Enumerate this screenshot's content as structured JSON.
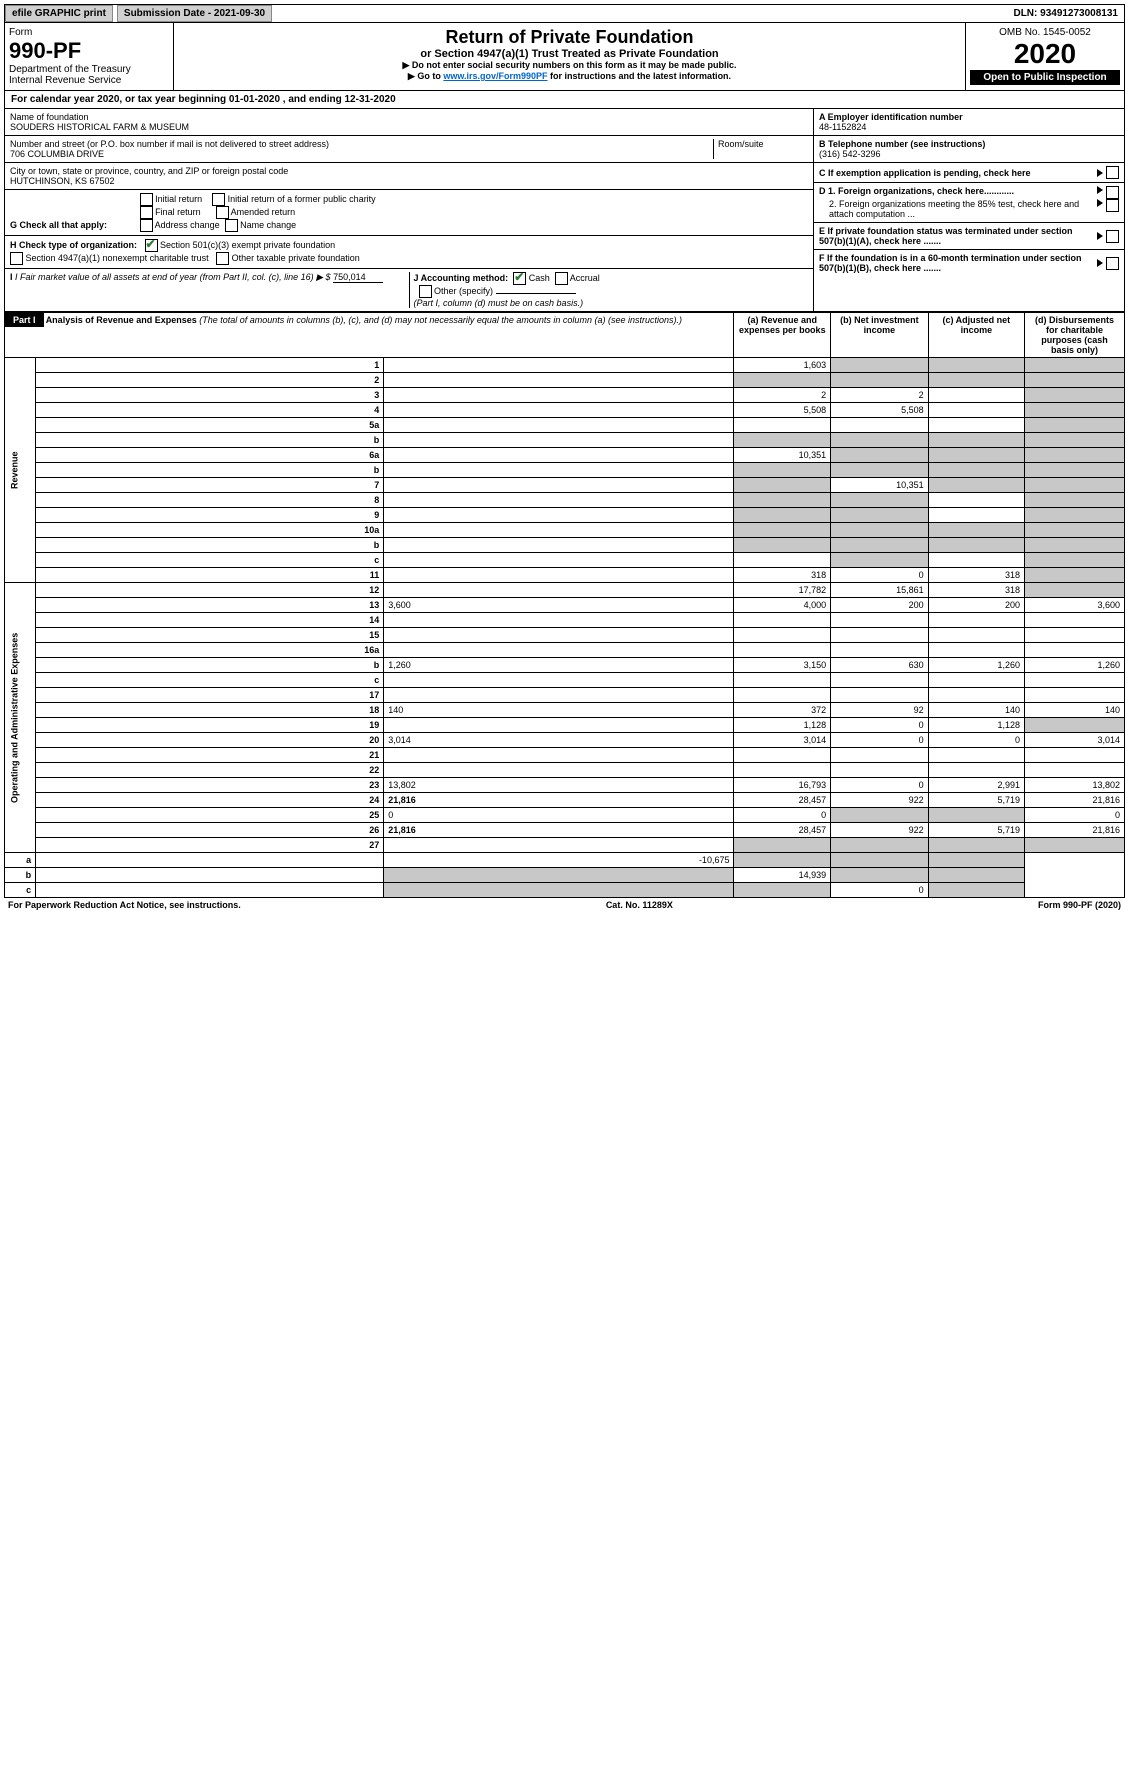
{
  "topbar": {
    "efile": "efile GRAPHIC print",
    "submission_label": "Submission Date - 2021-09-30",
    "dln": "DLN: 93491273008131"
  },
  "header": {
    "form_word": "Form",
    "form_number": "990-PF",
    "dept": "Department of the Treasury",
    "irs": "Internal Revenue Service",
    "title": "Return of Private Foundation",
    "subtitle": "or Section 4947(a)(1) Trust Treated as Private Foundation",
    "warn1": "▶ Do not enter social security numbers on this form as it may be made public.",
    "warn2_pre": "▶ Go to ",
    "warn2_link": "www.irs.gov/Form990PF",
    "warn2_post": " for instructions and the latest information.",
    "omb": "OMB No. 1545-0052",
    "year": "2020",
    "inspect": "Open to Public Inspection"
  },
  "calendar": {
    "text_pre": "For calendar year 2020, or tax year beginning ",
    "begin": "01-01-2020",
    "text_mid": " , and ending ",
    "end": "12-31-2020"
  },
  "info": {
    "name_label": "Name of foundation",
    "name": "SOUDERS HISTORICAL FARM & MUSEUM",
    "addr_label": "Number and street (or P.O. box number if mail is not delivered to street address)",
    "room_label": "Room/suite",
    "addr": "706 COLUMBIA DRIVE",
    "city_label": "City or town, state or province, country, and ZIP or foreign postal code",
    "city": "HUTCHINSON, KS  67502",
    "ein_label": "A Employer identification number",
    "ein": "48-1152824",
    "tel_label": "B Telephone number (see instructions)",
    "tel": "(316) 542-3296",
    "c_label": "C If exemption application is pending, check here",
    "g_label": "G Check all that apply:",
    "g_opts": [
      "Initial return",
      "Final return",
      "Address change",
      "Initial return of a former public charity",
      "Amended return",
      "Name change"
    ],
    "h_label": "H Check type of organization:",
    "h_opt1": "Section 501(c)(3) exempt private foundation",
    "h_opt2": "Section 4947(a)(1) nonexempt charitable trust",
    "h_opt3": "Other taxable private foundation",
    "i_label": "I Fair market value of all assets at end of year (from Part II, col. (c), line 16) ▶ $",
    "i_value": "750,014",
    "j_label": "J Accounting method:",
    "j_cash": "Cash",
    "j_accrual": "Accrual",
    "j_other": "Other (specify)",
    "j_note": "(Part I, column (d) must be on cash basis.)",
    "d1": "D 1. Foreign organizations, check here............",
    "d2": "2. Foreign organizations meeting the 85% test, check here and attach computation ...",
    "e_label": "E  If private foundation status was terminated under section 507(b)(1)(A), check here .......",
    "f_label": "F  If the foundation is in a 60-month termination under section 507(b)(1)(B), check here .......",
    "arrow": "▶"
  },
  "part1": {
    "label": "Part I",
    "title": "Analysis of Revenue and Expenses",
    "title_note": " (The total of amounts in columns (b), (c), and (d) may not necessarily equal the amounts in column (a) (see instructions).)",
    "col_a": "(a)   Revenue and expenses per books",
    "col_b": "(b)  Net investment income",
    "col_c": "(c)  Adjusted net income",
    "col_d": "(d)  Disbursements for charitable purposes (cash basis only)"
  },
  "revenue_label": "Revenue",
  "expenses_label": "Operating and Administrative Expenses",
  "rows": [
    {
      "n": "1",
      "d": "",
      "a": "1,603",
      "b": "",
      "c": "",
      "bg": [
        "",
        "g",
        "g",
        "g"
      ]
    },
    {
      "n": "2",
      "d": "",
      "a": "",
      "b": "",
      "c": "",
      "bg": [
        "g",
        "g",
        "g",
        "g"
      ],
      "checked": true
    },
    {
      "n": "3",
      "d": "",
      "a": "2",
      "b": "2",
      "c": "",
      "bg": [
        "",
        "",
        "",
        "g"
      ]
    },
    {
      "n": "4",
      "d": "",
      "a": "5,508",
      "b": "5,508",
      "c": "",
      "bg": [
        "",
        "",
        "",
        "g"
      ]
    },
    {
      "n": "5a",
      "d": "",
      "a": "",
      "b": "",
      "c": "",
      "bg": [
        "",
        "",
        "",
        "g"
      ]
    },
    {
      "n": "b",
      "d": "",
      "a": "",
      "b": "",
      "c": "",
      "bg": [
        "g",
        "g",
        "g",
        "g"
      ]
    },
    {
      "n": "6a",
      "d": "",
      "a": "10,351",
      "b": "",
      "c": "",
      "bg": [
        "",
        "g",
        "g",
        "g"
      ]
    },
    {
      "n": "b",
      "d": "",
      "a": "",
      "b": "",
      "c": "",
      "bg": [
        "g",
        "g",
        "g",
        "g"
      ]
    },
    {
      "n": "7",
      "d": "",
      "a": "",
      "b": "10,351",
      "c": "",
      "bg": [
        "g",
        "",
        "g",
        "g"
      ]
    },
    {
      "n": "8",
      "d": "",
      "a": "",
      "b": "",
      "c": "",
      "bg": [
        "g",
        "g",
        "",
        "g"
      ]
    },
    {
      "n": "9",
      "d": "",
      "a": "",
      "b": "",
      "c": "",
      "bg": [
        "g",
        "g",
        "",
        "g"
      ]
    },
    {
      "n": "10a",
      "d": "",
      "a": "",
      "b": "",
      "c": "",
      "bg": [
        "g",
        "g",
        "g",
        "g"
      ]
    },
    {
      "n": "b",
      "d": "",
      "a": "",
      "b": "",
      "c": "",
      "bg": [
        "g",
        "g",
        "g",
        "g"
      ]
    },
    {
      "n": "c",
      "d": "",
      "a": "",
      "b": "",
      "c": "",
      "bg": [
        "",
        "g",
        "",
        "g"
      ]
    },
    {
      "n": "11",
      "d": "",
      "a": "318",
      "b": "0",
      "c": "318",
      "bg": [
        "",
        "",
        "",
        "g"
      ]
    },
    {
      "n": "12",
      "d": "",
      "a": "17,782",
      "b": "15,861",
      "c": "318",
      "bg": [
        "",
        "",
        "",
        "g"
      ],
      "bold": true
    },
    {
      "n": "13",
      "d": "3,600",
      "a": "4,000",
      "b": "200",
      "c": "200"
    },
    {
      "n": "14",
      "d": "",
      "a": "",
      "b": "",
      "c": ""
    },
    {
      "n": "15",
      "d": "",
      "a": "",
      "b": "",
      "c": ""
    },
    {
      "n": "16a",
      "d": "",
      "a": "",
      "b": "",
      "c": ""
    },
    {
      "n": "b",
      "d": "1,260",
      "a": "3,150",
      "b": "630",
      "c": "1,260"
    },
    {
      "n": "c",
      "d": "",
      "a": "",
      "b": "",
      "c": ""
    },
    {
      "n": "17",
      "d": "",
      "a": "",
      "b": "",
      "c": ""
    },
    {
      "n": "18",
      "d": "140",
      "a": "372",
      "b": "92",
      "c": "140"
    },
    {
      "n": "19",
      "d": "",
      "a": "1,128",
      "b": "0",
      "c": "1,128",
      "bg": [
        "",
        "",
        "",
        "g"
      ]
    },
    {
      "n": "20",
      "d": "3,014",
      "a": "3,014",
      "b": "0",
      "c": "0"
    },
    {
      "n": "21",
      "d": "",
      "a": "",
      "b": "",
      "c": ""
    },
    {
      "n": "22",
      "d": "",
      "a": "",
      "b": "",
      "c": ""
    },
    {
      "n": "23",
      "d": "13,802",
      "a": "16,793",
      "b": "0",
      "c": "2,991"
    },
    {
      "n": "24",
      "d": "21,816",
      "a": "28,457",
      "b": "922",
      "c": "5,719",
      "bold": true
    },
    {
      "n": "25",
      "d": "0",
      "a": "0",
      "b": "",
      "c": "",
      "bg": [
        "",
        "g",
        "g",
        ""
      ]
    },
    {
      "n": "26",
      "d": "21,816",
      "a": "28,457",
      "b": "922",
      "c": "5,719",
      "bold": true
    },
    {
      "n": "27",
      "d": "",
      "a": "",
      "b": "",
      "c": "",
      "bg": [
        "g",
        "g",
        "g",
        "g"
      ]
    },
    {
      "n": "a",
      "d": "",
      "a": "-10,675",
      "b": "",
      "c": "",
      "bg": [
        "",
        "g",
        "g",
        "g"
      ],
      "bold": true
    },
    {
      "n": "b",
      "d": "",
      "a": "",
      "b": "14,939",
      "c": "",
      "bg": [
        "g",
        "",
        "g",
        "g"
      ],
      "bold": true
    },
    {
      "n": "c",
      "d": "",
      "a": "",
      "b": "",
      "c": "0",
      "bg": [
        "g",
        "g",
        "",
        "g"
      ],
      "bold": true
    }
  ],
  "footer": {
    "left": "For Paperwork Reduction Act Notice, see instructions.",
    "mid": "Cat. No. 11289X",
    "right": "Form 990-PF (2020)"
  }
}
